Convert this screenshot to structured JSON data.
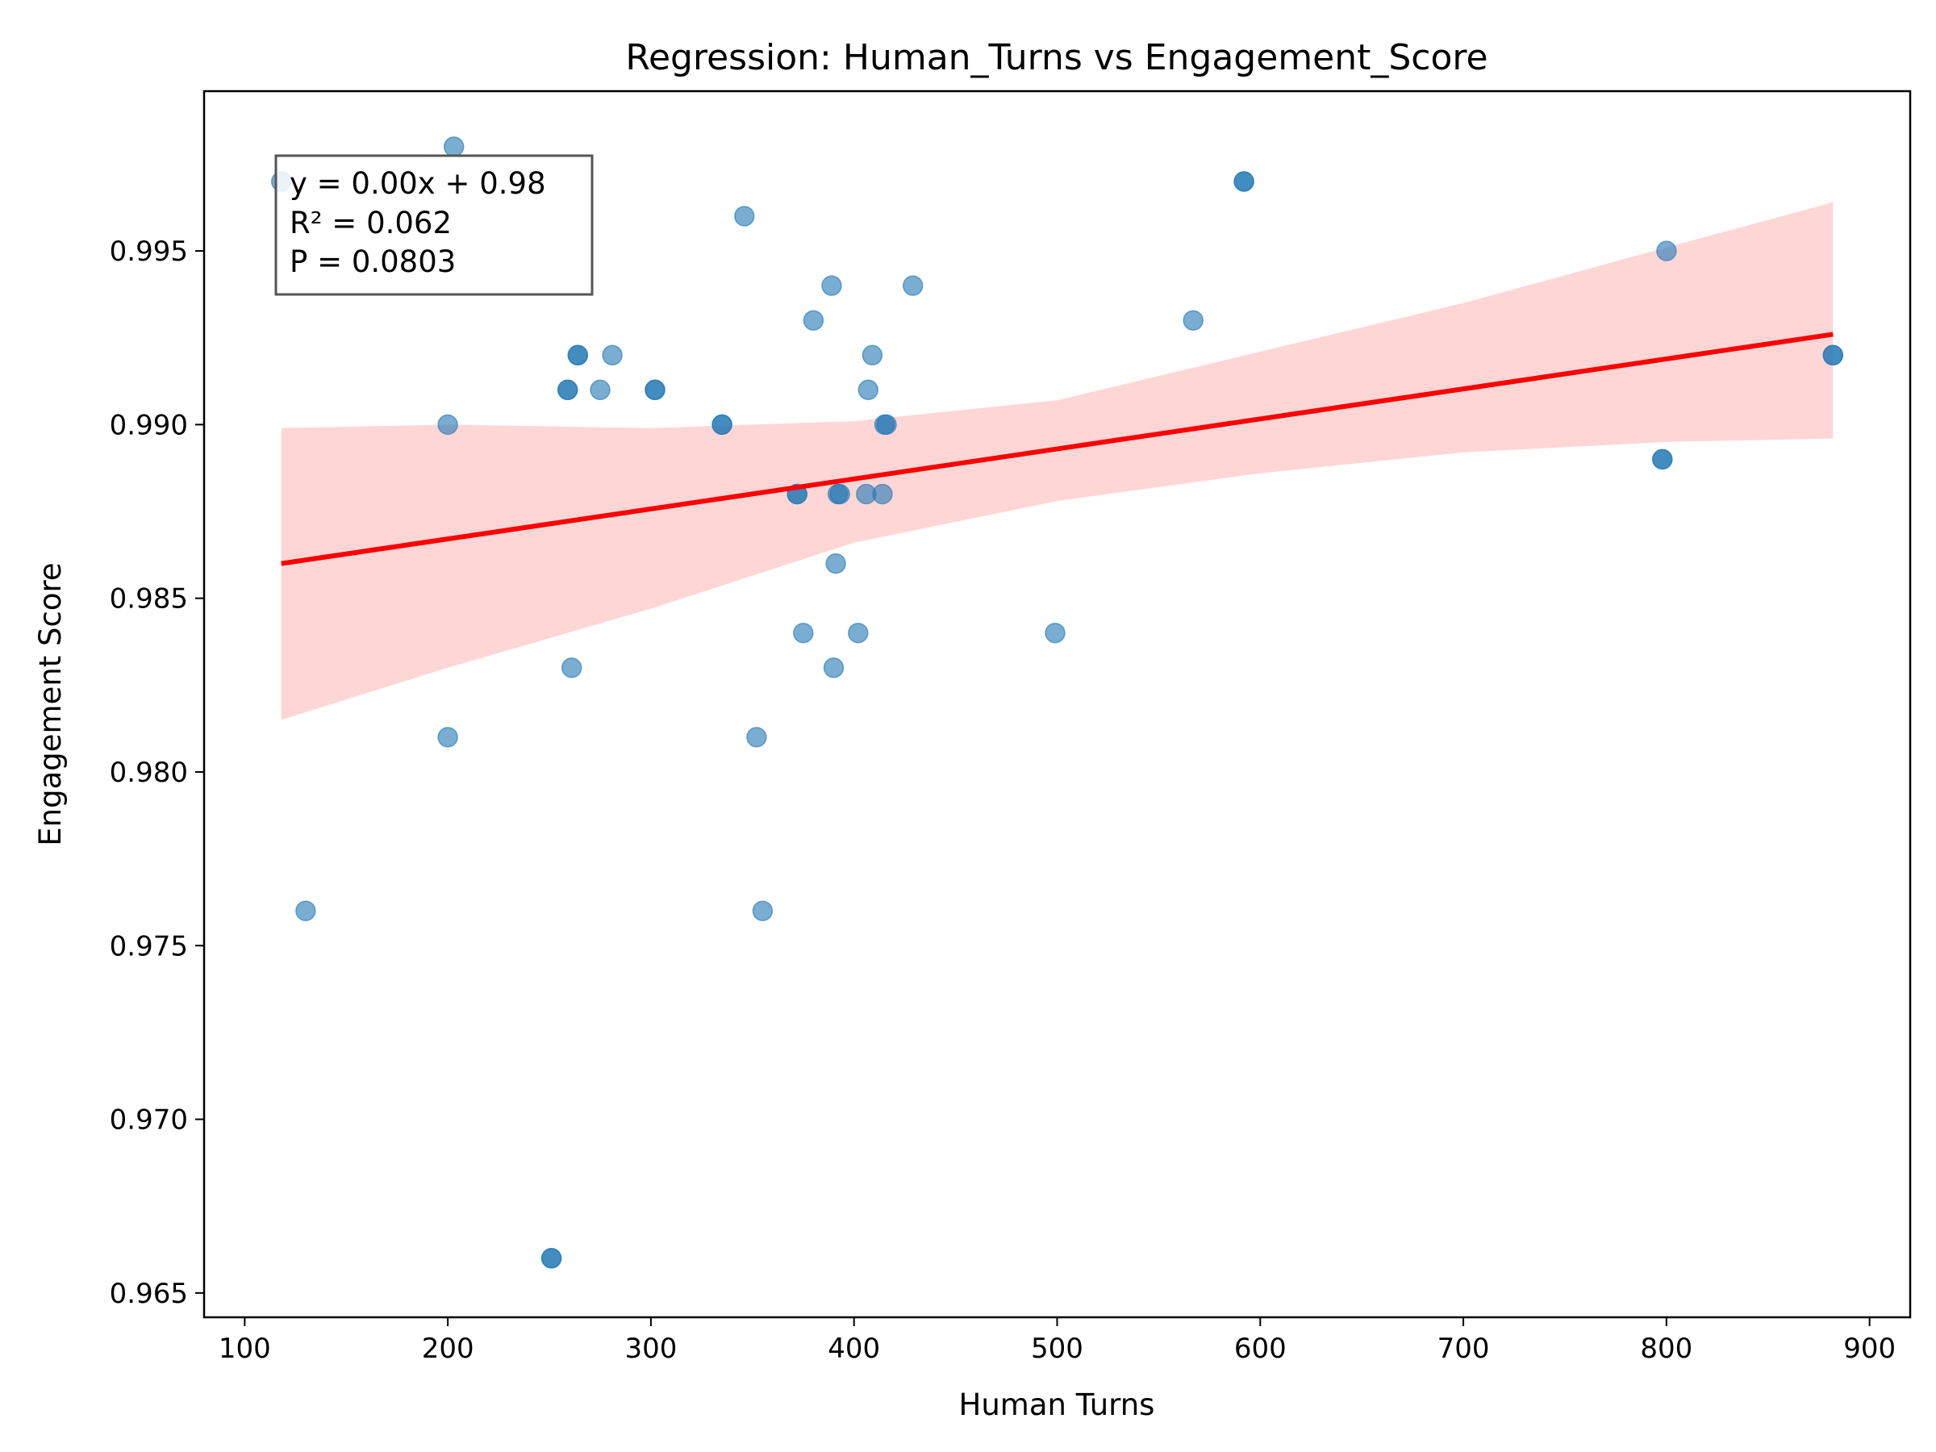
{
  "chart_data": {
    "type": "scatter",
    "title": "Regression: Human_Turns vs Engagement_Score",
    "xlabel": "Human Turns",
    "ylabel": "Engagement Score",
    "xlim": [
      80,
      920
    ],
    "ylim": [
      0.9643,
      0.9996
    ],
    "xticks": [
      100,
      200,
      300,
      400,
      500,
      600,
      700,
      800,
      900
    ],
    "xtick_labels": [
      "100",
      "200",
      "300",
      "400",
      "500",
      "600",
      "700",
      "800",
      "900"
    ],
    "yticks": [
      0.965,
      0.97,
      0.975,
      0.98,
      0.985,
      0.99,
      0.995
    ],
    "ytick_labels": [
      "0.965",
      "0.970",
      "0.975",
      "0.980",
      "0.985",
      "0.990",
      "0.995"
    ],
    "grid": false,
    "colors": {
      "points": "#1f77b4",
      "regression_line": "#ff0000",
      "confidence_band": "#ffcccc"
    },
    "annotation": {
      "lines": [
        "y = 0.00x + 0.98",
        "R² = 0.062",
        "P = 0.0803"
      ],
      "placement": "top-left"
    },
    "regression": {
      "x_range": [
        118,
        882
      ],
      "y_start": 0.986,
      "y_end": 0.9926
    },
    "confidence_band": {
      "x": [
        118,
        200,
        300,
        400,
        500,
        600,
        700,
        800,
        882
      ],
      "lower": [
        0.9815,
        0.983,
        0.9847,
        0.9866,
        0.9878,
        0.9886,
        0.9892,
        0.9895,
        0.9896
      ],
      "upper": [
        0.9899,
        0.99,
        0.9899,
        0.9901,
        0.9907,
        0.9921,
        0.9935,
        0.9951,
        0.9964
      ]
    },
    "series": [
      {
        "points": [
          [
            118,
            0.997
          ],
          [
            130,
            0.976
          ],
          [
            200,
            0.99
          ],
          [
            200,
            0.981
          ],
          [
            203,
            0.998
          ],
          [
            251,
            0.966
          ],
          [
            251,
            0.966
          ],
          [
            259,
            0.991
          ],
          [
            259,
            0.991
          ],
          [
            261,
            0.983
          ],
          [
            264,
            0.992
          ],
          [
            264,
            0.992
          ],
          [
            275,
            0.991
          ],
          [
            281,
            0.992
          ],
          [
            302,
            0.991
          ],
          [
            302,
            0.991
          ],
          [
            335,
            0.99
          ],
          [
            335,
            0.99
          ],
          [
            346,
            0.996
          ],
          [
            352,
            0.981
          ],
          [
            355,
            0.976
          ],
          [
            372,
            0.988
          ],
          [
            372,
            0.988
          ],
          [
            375,
            0.984
          ],
          [
            380,
            0.993
          ],
          [
            389,
            0.994
          ],
          [
            390,
            0.983
          ],
          [
            391,
            0.986
          ],
          [
            392,
            0.988
          ],
          [
            393,
            0.988
          ],
          [
            402,
            0.984
          ],
          [
            406,
            0.988
          ],
          [
            407,
            0.991
          ],
          [
            409,
            0.992
          ],
          [
            414,
            0.988
          ],
          [
            415,
            0.99
          ],
          [
            416,
            0.99
          ],
          [
            429,
            0.994
          ],
          [
            499,
            0.984
          ],
          [
            567,
            0.993
          ],
          [
            592,
            0.997
          ],
          [
            592,
            0.997
          ],
          [
            798,
            0.989
          ],
          [
            798,
            0.989
          ],
          [
            800,
            0.995
          ],
          [
            882,
            0.992
          ],
          [
            882,
            0.992
          ]
        ]
      }
    ]
  }
}
